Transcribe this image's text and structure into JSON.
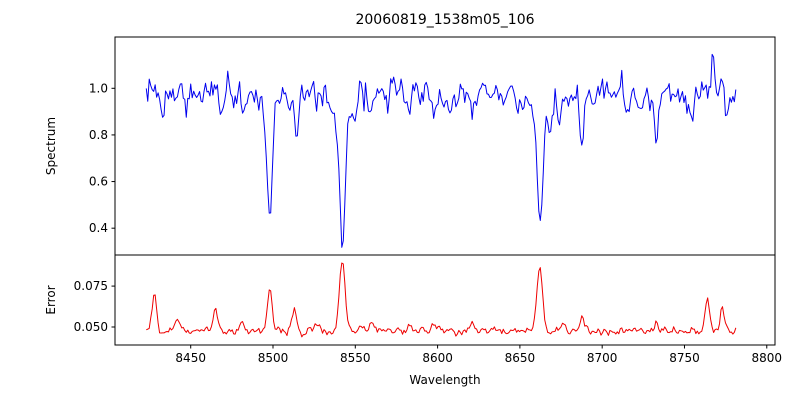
{
  "figure": {
    "background": "#ffffff",
    "axes_color": "#000000"
  },
  "chart_data": {
    "type": "line",
    "title": "20060819_1538m05_106",
    "xlabel": "Wavelength",
    "grid": false,
    "legend": "none",
    "xlim": [
      8404,
      8805
    ],
    "xticks": [
      {
        "v": 8450,
        "label": "8450"
      },
      {
        "v": 8500,
        "label": "8500"
      },
      {
        "v": 8550,
        "label": "8550"
      },
      {
        "v": 8600,
        "label": "8600"
      },
      {
        "v": 8650,
        "label": "8650"
      },
      {
        "v": 8700,
        "label": "8700"
      },
      {
        "v": 8750,
        "label": "8750"
      },
      {
        "v": 8800,
        "label": "8800"
      }
    ],
    "x_sampling": {
      "start": 8423,
      "end": 8782,
      "step": 0.9
    },
    "panels": [
      {
        "name": "spectrum",
        "ylabel": "Spectrum",
        "color": "#0000ee",
        "ylim": [
          0.285,
          1.22
        ],
        "yticks": [
          {
            "v": 0.4,
            "label": "0.4"
          },
          {
            "v": 0.6,
            "label": "0.6"
          },
          {
            "v": 0.8,
            "label": "0.8"
          },
          {
            "v": 1.0,
            "label": "1.0"
          }
        ],
        "baseline": 0.97,
        "noise": {
          "sigma": 0.03,
          "ar": 0.45,
          "seed": 20060819
        },
        "absorption_lines": [
          {
            "center": 8433.0,
            "depth": 0.1,
            "sigma": 1.0
          },
          {
            "center": 8447.0,
            "depth": 0.07,
            "sigma": 0.9
          },
          {
            "center": 8468.0,
            "depth": 0.13,
            "sigma": 1.1
          },
          {
            "center": 8482.0,
            "depth": 0.09,
            "sigma": 0.9
          },
          {
            "center": 8498.0,
            "depth": 0.5,
            "sigma": 1.4,
            "wing_sigma": 3.5,
            "wing_frac": 0.22
          },
          {
            "center": 8514.0,
            "depth": 0.16,
            "sigma": 1.1
          },
          {
            "center": 8526.0,
            "depth": 0.09,
            "sigma": 0.9
          },
          {
            "center": 8542.1,
            "depth": 0.6,
            "sigma": 1.7,
            "wing_sigma": 5.0,
            "wing_frac": 0.22
          },
          {
            "center": 8583.0,
            "depth": 0.1,
            "sigma": 1.0
          },
          {
            "center": 8598.0,
            "depth": 0.11,
            "sigma": 1.0
          },
          {
            "center": 8611.0,
            "depth": 0.08,
            "sigma": 0.9
          },
          {
            "center": 8621.0,
            "depth": 0.1,
            "sigma": 1.0
          },
          {
            "center": 8648.0,
            "depth": 0.09,
            "sigma": 0.9
          },
          {
            "center": 8662.1,
            "depth": 0.58,
            "sigma": 1.6,
            "wing_sigma": 5.0,
            "wing_frac": 0.22
          },
          {
            "center": 8674.0,
            "depth": 0.12,
            "sigma": 0.9
          },
          {
            "center": 8688.0,
            "depth": 0.22,
            "sigma": 1.3
          },
          {
            "center": 8733.0,
            "depth": 0.2,
            "sigma": 0.9
          },
          {
            "center": 8755.0,
            "depth": 0.13,
            "sigma": 0.9
          },
          {
            "center": 8776.0,
            "depth": 0.1,
            "sigma": 0.9
          }
        ],
        "emission_spikes": [
          {
            "center": 8712.0,
            "height": 0.1,
            "sigma": 0.8
          },
          {
            "center": 8767.0,
            "height": 0.19,
            "sigma": 0.8
          }
        ]
      },
      {
        "name": "error",
        "ylabel": "Error",
        "color": "#ee0000",
        "ylim": [
          0.039,
          0.094
        ],
        "yticks": [
          {
            "v": 0.05,
            "label": "0.050"
          },
          {
            "v": 0.075,
            "label": "0.075"
          }
        ],
        "baseline": 0.0475,
        "noise": {
          "sigma": 0.0011,
          "ar": 0.4,
          "seed": 1538
        },
        "peaks": [
          {
            "center": 8428.0,
            "height": 0.024,
            "sigma": 1.4
          },
          {
            "center": 8442.0,
            "height": 0.006,
            "sigma": 1.2
          },
          {
            "center": 8465.0,
            "height": 0.015,
            "sigma": 1.4
          },
          {
            "center": 8481.0,
            "height": 0.007,
            "sigma": 1.2
          },
          {
            "center": 8498.0,
            "height": 0.025,
            "sigma": 1.5
          },
          {
            "center": 8513.0,
            "height": 0.013,
            "sigma": 1.4
          },
          {
            "center": 8526.0,
            "height": 0.007,
            "sigma": 1.2
          },
          {
            "center": 8542.1,
            "height": 0.042,
            "sigma": 1.8
          },
          {
            "center": 8560.0,
            "height": 0.005,
            "sigma": 1.2
          },
          {
            "center": 8583.0,
            "height": 0.004,
            "sigma": 1.2
          },
          {
            "center": 8598.0,
            "height": 0.005,
            "sigma": 1.4
          },
          {
            "center": 8621.0,
            "height": 0.004,
            "sigma": 1.2
          },
          {
            "center": 8662.1,
            "height": 0.041,
            "sigma": 1.8
          },
          {
            "center": 8676.0,
            "height": 0.005,
            "sigma": 1.2
          },
          {
            "center": 8688.0,
            "height": 0.009,
            "sigma": 1.4
          },
          {
            "center": 8733.0,
            "height": 0.005,
            "sigma": 1.2
          },
          {
            "center": 8764.0,
            "height": 0.019,
            "sigma": 1.4
          },
          {
            "center": 8773.0,
            "height": 0.014,
            "sigma": 1.2
          },
          {
            "center": 8783.0,
            "height": 0.008,
            "sigma": 1.2
          }
        ]
      }
    ]
  }
}
